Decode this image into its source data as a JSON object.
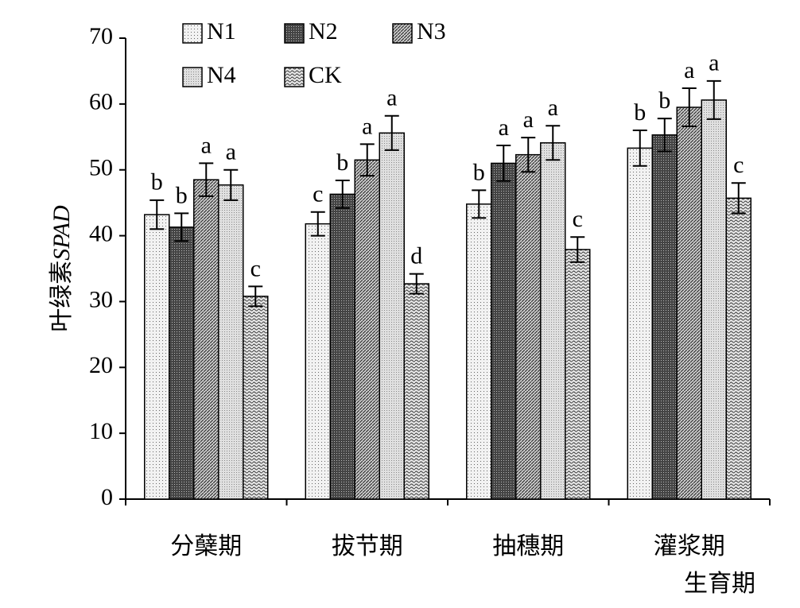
{
  "chart_data": {
    "type": "bar",
    "y_label": {
      "text": "叶绿素",
      "unit": "SPAD"
    },
    "x_label": "生育期",
    "categories": [
      "分蘖期",
      "拔节期",
      "抽穗期",
      "灌浆期"
    ],
    "series": [
      {
        "name": "N1",
        "color": "#e8e8e8",
        "values": [
          43.2,
          41.8,
          44.8,
          53.3
        ],
        "errors": [
          2.2,
          1.8,
          2.1,
          2.7
        ],
        "labels": [
          "b",
          "c",
          "b",
          "b"
        ]
      },
      {
        "name": "N2",
        "color": "#555555",
        "values": [
          41.3,
          46.3,
          51.0,
          55.3
        ],
        "errors": [
          2.1,
          2.1,
          2.7,
          2.5
        ],
        "labels": [
          "b",
          "b",
          "a",
          "b"
        ]
      },
      {
        "name": "N3",
        "color": "#999999",
        "values": [
          48.5,
          51.5,
          52.3,
          59.5
        ],
        "errors": [
          2.5,
          2.4,
          2.6,
          2.9
        ],
        "labels": [
          "a",
          "a",
          "a",
          "a"
        ]
      },
      {
        "name": "N4",
        "color": "#cccccc",
        "values": [
          47.7,
          55.6,
          54.1,
          60.6
        ],
        "errors": [
          2.3,
          2.6,
          2.6,
          2.9
        ],
        "labels": [
          "a",
          "a",
          "a",
          "a"
        ]
      },
      {
        "name": "CK",
        "color": "#b0b0b0",
        "values": [
          30.8,
          32.7,
          37.9,
          45.7
        ],
        "errors": [
          1.5,
          1.5,
          1.9,
          2.3
        ],
        "labels": [
          "c",
          "d",
          "c",
          "c"
        ]
      }
    ],
    "ylim": [
      0,
      70
    ],
    "yticks": [
      0,
      10,
      20,
      30,
      40,
      50,
      60,
      70
    ]
  }
}
